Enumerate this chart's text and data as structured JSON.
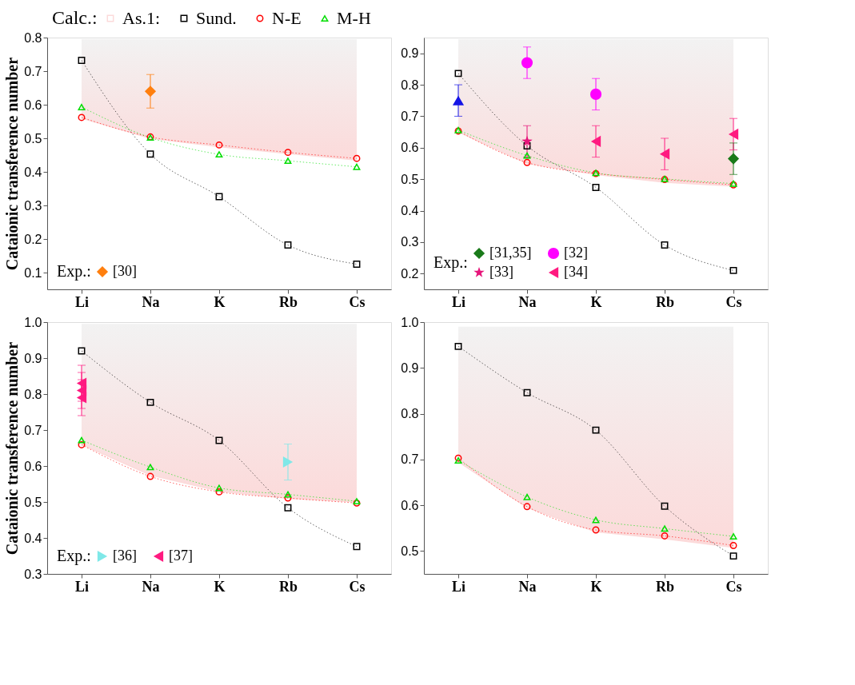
{
  "chart_data": [
    {
      "type": "line",
      "ylabel": "Cataionic transference number",
      "categories": [
        "Li",
        "Na",
        "K",
        "Rb",
        "Cs"
      ],
      "ylim": [
        0.05,
        0.8
      ],
      "yticks": [
        0.1,
        0.2,
        0.3,
        0.4,
        0.5,
        0.6,
        0.7,
        0.8
      ],
      "legend": [
        "top",
        "bottom left"
      ],
      "legend_title": [
        "Calc.:",
        "Exp.:"
      ],
      "grid": false,
      "series": [
        {
          "name": "As.1:",
          "color": "#fcdada",
          "values": [
            0.56,
            0.5,
            0.475,
            0.455,
            0.435
          ],
          "lower": [
            0.56,
            0.5,
            0.475,
            0.455,
            0.435
          ],
          "upper": [
            0.795,
            0.795,
            0.795,
            0.795,
            0.795
          ]
        },
        {
          "name": "Sund.",
          "color": "#000000",
          "marker": "square",
          "line_style": "dotted",
          "values": [
            0.732,
            0.453,
            0.326,
            0.182,
            0.125
          ]
        },
        {
          "name": "N-E",
          "color": "#ff0000",
          "marker": "circle",
          "line_style": "dotted",
          "values": [
            0.562,
            0.504,
            0.48,
            0.458,
            0.44
          ]
        },
        {
          "name": "M-H",
          "color": "#00dd00",
          "marker": "triangle",
          "line_style": "dotted",
          "values": [
            0.593,
            0.502,
            0.452,
            0.433,
            0.415
          ]
        },
        {
          "type": "scatter",
          "name": "[30]",
          "color": "#ff7f0e",
          "marker": "diamond",
          "x": [
            "Na"
          ],
          "values": [
            0.64
          ],
          "errors": [
            0.05
          ]
        }
      ]
    },
    {
      "type": "line",
      "categories": [
        "Li",
        "Na",
        "K",
        "Rb",
        "Cs"
      ],
      "ylim": [
        0.15,
        0.95
      ],
      "yticks": [
        0.2,
        0.3,
        0.4,
        0.5,
        0.6,
        0.7,
        0.8,
        0.9
      ],
      "legend": "bottom left",
      "legend_title": "Exp.:",
      "grid": false,
      "series": [
        {
          "color": "#fcdada",
          "values": [
            0.65,
            0.55,
            0.515,
            0.49,
            0.478
          ],
          "lower": [
            0.65,
            0.55,
            0.515,
            0.49,
            0.478
          ],
          "upper": [
            0.945,
            0.945,
            0.945,
            0.945,
            0.945
          ]
        },
        {
          "color": "#000000",
          "marker": "square",
          "line_style": "dotted",
          "values": [
            0.836,
            0.606,
            0.474,
            0.291,
            0.21
          ]
        },
        {
          "color": "#ff0000",
          "marker": "circle",
          "line_style": "dotted",
          "values": [
            0.653,
            0.553,
            0.518,
            0.499,
            0.482
          ]
        },
        {
          "color": "#00dd00",
          "marker": "triangle",
          "line_style": "dotted",
          "values": [
            0.656,
            0.575,
            0.52,
            0.501,
            0.486
          ]
        },
        {
          "type": "scatter",
          "color": "#1515e6",
          "marker": "triangle",
          "x": [
            "Li"
          ],
          "values": [
            0.75
          ],
          "errors": [
            0.05
          ]
        },
        {
          "type": "scatter",
          "name": "[31,35]",
          "color": "#1a7a1a",
          "marker": "diamond",
          "x": [
            "Cs"
          ],
          "values": [
            0.565
          ],
          "errors": [
            0.05
          ]
        },
        {
          "type": "scatter",
          "name": "[32]",
          "color": "#ff00ff",
          "x": [
            "Na",
            "K"
          ],
          "values": [
            0.87,
            0.77
          ],
          "errors": [
            0.05,
            0.05
          ]
        },
        {
          "type": "scatter",
          "name": "[33]",
          "color": "#e6157a",
          "marker": "star",
          "x": [
            "Na"
          ],
          "values": [
            0.62
          ],
          "errors": [
            0.05
          ]
        },
        {
          "type": "scatter",
          "name": "[34]",
          "color": "#ff1a80",
          "marker": "triangle-left",
          "x": [
            "K",
            "Rb",
            "Cs"
          ],
          "values": [
            0.62,
            0.58,
            0.643
          ],
          "errors": [
            0.05,
            0.05,
            0.05
          ]
        }
      ]
    },
    {
      "type": "line",
      "ylabel": "Cataionic transference number",
      "categories": [
        "Li",
        "Na",
        "K",
        "Rb",
        "Cs"
      ],
      "ylim": [
        0.3,
        1.0
      ],
      "yticks": [
        0.3,
        0.4,
        0.5,
        0.6,
        0.7,
        0.8,
        0.9,
        {
          "value": 1.0,
          "label": "1.0"
        }
      ],
      "legend": "bottom left",
      "legend_title": "Exp.:",
      "grid": false,
      "series": [
        {
          "color": "#fcdada",
          "values": [
            0.66,
            0.575,
            0.53,
            0.51,
            0.5
          ],
          "lower": [
            0.66,
            0.575,
            0.53,
            0.51,
            0.5
          ],
          "upper": [
            0.995,
            0.995,
            0.995,
            0.995,
            0.995
          ]
        },
        {
          "color": "#000000",
          "marker": "square",
          "line_style": "dotted",
          "values": [
            0.92,
            0.777,
            0.671,
            0.484,
            0.376
          ]
        },
        {
          "color": "#ff0000",
          "marker": "circle",
          "line_style": "dotted",
          "values": [
            0.659,
            0.571,
            0.528,
            0.511,
            0.497
          ]
        },
        {
          "color": "#00dd00",
          "marker": "triangle",
          "line_style": "dotted",
          "values": [
            0.672,
            0.597,
            0.539,
            0.521,
            0.502
          ]
        },
        {
          "type": "scatter",
          "name": "[36]",
          "color": "#7fe8e8",
          "marker": "triangle-right",
          "x": [
            "Rb"
          ],
          "values": [
            0.611
          ],
          "errors": [
            0.05
          ]
        },
        {
          "type": "scatter",
          "name": "[37]",
          "color": "#ff1a80",
          "marker": "triangle-left",
          "x": [
            "Li",
            "Li",
            "Li"
          ],
          "values": [
            0.79,
            0.81,
            0.83
          ],
          "errors": [
            0.05,
            0.05,
            0.05
          ]
        }
      ]
    },
    {
      "type": "line",
      "categories": [
        "Li",
        "Na",
        "K",
        "Rb",
        "Cs"
      ],
      "ylim": [
        0.45,
        1.0
      ],
      "yticks": [
        0.5,
        0.6,
        0.7,
        0.8,
        0.9,
        {
          "value": 1.0,
          "label": "1.0"
        }
      ],
      "grid": false,
      "series": [
        {
          "color": "#fcdada",
          "values": [
            0.695,
            0.595,
            0.542,
            0.527,
            0.508
          ],
          "lower": [
            0.695,
            0.595,
            0.542,
            0.527,
            0.508
          ],
          "upper": [
            0.99,
            0.99,
            0.99,
            0.99,
            0.99
          ]
        },
        {
          "color": "#000000",
          "marker": "square",
          "line_style": "dotted",
          "values": [
            0.947,
            0.846,
            0.764,
            0.598,
            0.489
          ]
        },
        {
          "color": "#ff0000",
          "marker": "circle",
          "line_style": "dotted",
          "values": [
            0.703,
            0.597,
            0.546,
            0.533,
            0.512
          ]
        },
        {
          "color": "#00dd00",
          "marker": "triangle",
          "line_style": "dotted",
          "values": [
            0.698,
            0.618,
            0.568,
            0.549,
            0.532
          ]
        }
      ]
    }
  ]
}
